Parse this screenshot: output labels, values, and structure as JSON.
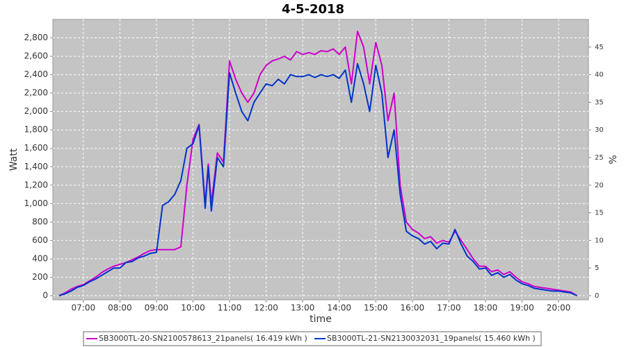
{
  "chart_data": {
    "type": "line",
    "title": "4-5-2018",
    "x_label": "time",
    "y_label": "Watt",
    "y2_label": "%",
    "x": [
      "06:20",
      "06:30",
      "06:40",
      "06:50",
      "07:00",
      "07:10",
      "07:20",
      "07:30",
      "07:40",
      "07:50",
      "08:00",
      "08:10",
      "08:20",
      "08:30",
      "08:40",
      "08:50",
      "09:00",
      "09:10",
      "09:20",
      "09:30",
      "09:40",
      "09:50",
      "10:00",
      "10:10",
      "10:20",
      "10:25",
      "10:30",
      "10:40",
      "10:50",
      "11:00",
      "11:10",
      "11:20",
      "11:30",
      "11:40",
      "11:50",
      "12:00",
      "12:10",
      "12:20",
      "12:30",
      "12:40",
      "12:50",
      "13:00",
      "13:10",
      "13:20",
      "13:30",
      "13:40",
      "13:50",
      "14:00",
      "14:10",
      "14:20",
      "14:30",
      "14:40",
      "14:50",
      "15:00",
      "15:10",
      "15:20",
      "15:30",
      "15:40",
      "15:50",
      "16:00",
      "16:10",
      "16:20",
      "16:30",
      "16:40",
      "16:50",
      "17:00",
      "17:10",
      "17:20",
      "17:30",
      "17:40",
      "17:50",
      "18:00",
      "18:10",
      "18:20",
      "18:30",
      "18:40",
      "18:50",
      "19:00",
      "19:10",
      "19:20",
      "19:30",
      "19:40",
      "19:50",
      "20:00",
      "20:10",
      "20:20",
      "20:30"
    ],
    "series": [
      {
        "name": "SB3000TL-20-SN2100578613_21panels( 16.419 kWh )",
        "color": "#cc00cc",
        "values": [
          0,
          30,
          70,
          100,
          120,
          160,
          200,
          250,
          290,
          320,
          340,
          360,
          390,
          420,
          460,
          490,
          500,
          500,
          500,
          500,
          530,
          1200,
          1700,
          1860,
          1000,
          1430,
          1000,
          1550,
          1450,
          2550,
          2350,
          2200,
          2100,
          2200,
          2400,
          2500,
          2550,
          2570,
          2600,
          2560,
          2650,
          2620,
          2640,
          2620,
          2660,
          2650,
          2680,
          2620,
          2700,
          2300,
          2870,
          2700,
          2300,
          2750,
          2500,
          1900,
          2200,
          1200,
          800,
          720,
          680,
          620,
          640,
          570,
          600,
          580,
          700,
          600,
          500,
          400,
          320,
          320,
          260,
          280,
          230,
          260,
          200,
          150,
          130,
          100,
          90,
          80,
          70,
          60,
          50,
          40,
          0
        ]
      },
      {
        "name": "SB3000TL-21-SN2130032031_19panels( 15.460 kWh )",
        "color": "#0033cc",
        "values": [
          0,
          20,
          50,
          90,
          110,
          150,
          180,
          220,
          260,
          300,
          300,
          360,
          370,
          410,
          430,
          460,
          470,
          980,
          1020,
          1100,
          1250,
          1600,
          1650,
          1850,
          950,
          1400,
          920,
          1500,
          1400,
          2420,
          2200,
          2000,
          1900,
          2100,
          2200,
          2300,
          2280,
          2350,
          2300,
          2400,
          2380,
          2380,
          2400,
          2370,
          2400,
          2380,
          2400,
          2360,
          2450,
          2100,
          2520,
          2300,
          2000,
          2500,
          2200,
          1500,
          1800,
          1100,
          700,
          650,
          620,
          560,
          590,
          510,
          570,
          560,
          720,
          560,
          430,
          370,
          290,
          300,
          220,
          250,
          200,
          230,
          170,
          130,
          110,
          80,
          70,
          60,
          50,
          50,
          40,
          30,
          0
        ]
      }
    ],
    "xlim": [
      "06:10",
      "20:49"
    ],
    "xticks": [
      "07:00",
      "08:00",
      "09:00",
      "10:00",
      "11:00",
      "12:00",
      "13:00",
      "14:00",
      "15:00",
      "16:00",
      "17:00",
      "18:00",
      "19:00",
      "20:00"
    ],
    "ylim": [
      -45,
      3000
    ],
    "yticks": [
      0,
      200,
      400,
      600,
      800,
      {
        "value": 1000,
        "label": "1,000"
      },
      {
        "value": 1200,
        "label": "1,200"
      },
      {
        "value": 1400,
        "label": "1,400"
      },
      {
        "value": 1600,
        "label": "1,600"
      },
      {
        "value": 1800,
        "label": "1,800"
      },
      {
        "value": 2000,
        "label": "2,000"
      },
      {
        "value": 2200,
        "label": "2,200"
      },
      {
        "value": 2400,
        "label": "2,400"
      },
      {
        "value": 2600,
        "label": "2,600"
      },
      {
        "value": 2800,
        "label": "2,800"
      }
    ],
    "y2lim": [
      -0.75,
      50
    ],
    "y2ticks": [
      0,
      5,
      10,
      15,
      20,
      25,
      30,
      35,
      40,
      45
    ],
    "grid": true
  }
}
